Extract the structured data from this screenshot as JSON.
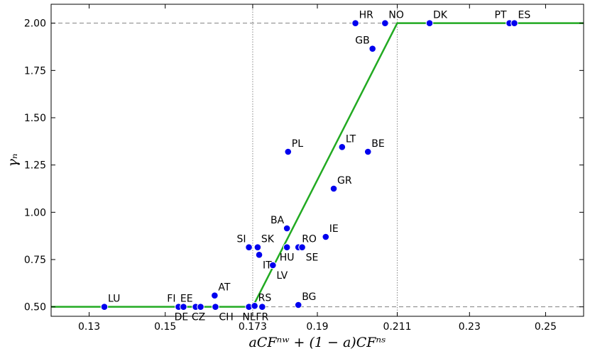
{
  "chart_data": {
    "type": "scatter",
    "xlabel": "aCFⁿʷ + (1 − a)CFⁿˢ",
    "ylabel": "γₙ",
    "xlim": [
      0.12,
      0.26
    ],
    "ylim": [
      0.45,
      2.1
    ],
    "xticks": [
      0.13,
      0.15,
      0.173,
      0.19,
      0.211,
      0.23,
      0.25
    ],
    "xtick_labels": [
      "0.13",
      "0.15",
      "0.173",
      "0.19",
      "0.211",
      "0.23",
      "0.25"
    ],
    "yticks": [
      0.5,
      0.75,
      1.0,
      1.25,
      1.5,
      1.75,
      2.0
    ],
    "ytick_labels": [
      "0.50",
      "0.75",
      "1.00",
      "1.25",
      "1.50",
      "1.75",
      "2.00"
    ],
    "reference_lines": {
      "vertical": [
        0.173,
        0.211
      ],
      "horizontal": [
        0.5,
        2.0
      ]
    },
    "fit_line": {
      "x": [
        0.12,
        0.173,
        0.211,
        0.26
      ],
      "y": [
        0.5,
        0.5,
        2.0,
        2.0
      ],
      "color": "#22aa22"
    },
    "point_color": "#0000ee",
    "points": [
      {
        "label": "LU",
        "x": 0.134,
        "y": 0.5,
        "anchor": "tr"
      },
      {
        "label": "FI",
        "x": 0.1535,
        "y": 0.5,
        "anchor": "tl"
      },
      {
        "label": "DE",
        "x": 0.1548,
        "y": 0.5,
        "anchor": "bl"
      },
      {
        "label": "EE",
        "x": 0.158,
        "y": 0.5,
        "anchor": "tl"
      },
      {
        "label": "CZ",
        "x": 0.1593,
        "y": 0.5,
        "anchor": "bl"
      },
      {
        "label": "CH",
        "x": 0.1632,
        "y": 0.5,
        "anchor": "br"
      },
      {
        "label": "AT",
        "x": 0.163,
        "y": 0.56,
        "anchor": "tr"
      },
      {
        "label": "NL",
        "x": 0.172,
        "y": 0.5,
        "anchor": "bc"
      },
      {
        "label": "RS",
        "x": 0.1735,
        "y": 0.505,
        "anchor": "tr"
      },
      {
        "label": "FR",
        "x": 0.1755,
        "y": 0.5,
        "anchor": "bc"
      },
      {
        "label": "BG",
        "x": 0.185,
        "y": 0.51,
        "anchor": "tr"
      },
      {
        "label": "LV",
        "x": 0.1783,
        "y": 0.72,
        "anchor": "br"
      },
      {
        "label": "SI",
        "x": 0.172,
        "y": 0.815,
        "anchor": "tl"
      },
      {
        "label": "SK",
        "x": 0.1743,
        "y": 0.815,
        "anchor": "tr"
      },
      {
        "label": "IT",
        "x": 0.1747,
        "y": 0.775,
        "anchor": "br"
      },
      {
        "label": "HU",
        "x": 0.182,
        "y": 0.815,
        "anchor": "bc"
      },
      {
        "label": "RO",
        "x": 0.185,
        "y": 0.815,
        "anchor": "tr"
      },
      {
        "label": "SE",
        "x": 0.186,
        "y": 0.815,
        "anchor": "br"
      },
      {
        "label": "BA",
        "x": 0.182,
        "y": 0.915,
        "anchor": "tl"
      },
      {
        "label": "IE",
        "x": 0.1922,
        "y": 0.87,
        "anchor": "tr"
      },
      {
        "label": "GR",
        "x": 0.1943,
        "y": 1.125,
        "anchor": "tr"
      },
      {
        "label": "PL",
        "x": 0.1823,
        "y": 1.32,
        "anchor": "tr"
      },
      {
        "label": "LT",
        "x": 0.1965,
        "y": 1.345,
        "anchor": "tr"
      },
      {
        "label": "BE",
        "x": 0.2033,
        "y": 1.32,
        "anchor": "tr"
      },
      {
        "label": "GB",
        "x": 0.2045,
        "y": 1.865,
        "anchor": "tl"
      },
      {
        "label": "HR",
        "x": 0.2,
        "y": 2.0,
        "anchor": "tr"
      },
      {
        "label": "NO",
        "x": 0.2078,
        "y": 2.0,
        "anchor": "tr"
      },
      {
        "label": "DK",
        "x": 0.2195,
        "y": 2.0,
        "anchor": "tr"
      },
      {
        "label": "PT",
        "x": 0.2405,
        "y": 2.0,
        "anchor": "tl"
      },
      {
        "label": "ES",
        "x": 0.2418,
        "y": 2.0,
        "anchor": "tr"
      }
    ]
  }
}
